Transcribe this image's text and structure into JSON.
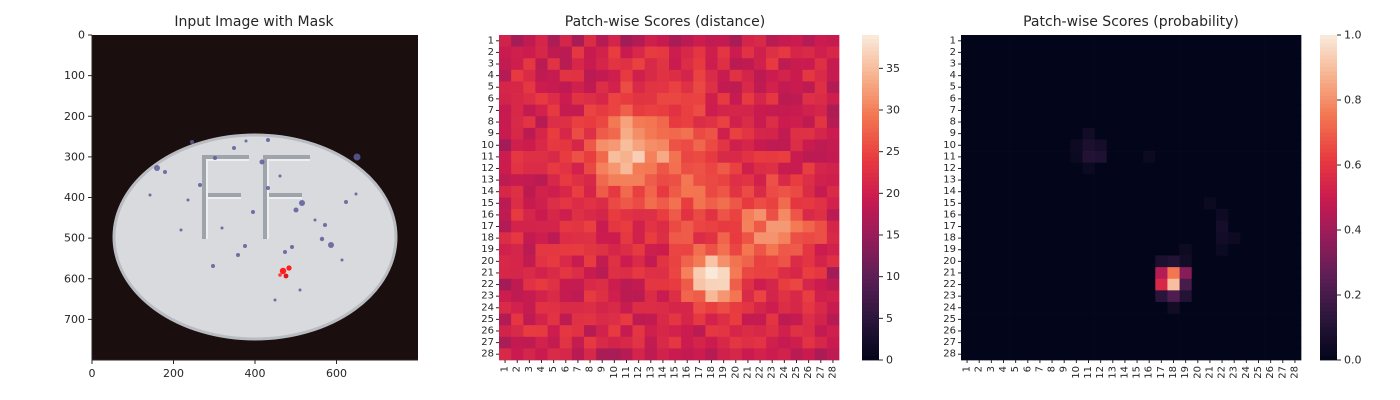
{
  "chart_data": [
    {
      "type": "image",
      "title": "Input Image with Mask",
      "xticks": [
        "0",
        "200",
        "400",
        "600"
      ],
      "yticks": [
        "0",
        "100",
        "200",
        "300",
        "400",
        "500",
        "600",
        "700"
      ],
      "xlim": [
        0,
        800
      ],
      "ylim": [
        800,
        0
      ],
      "colors": {
        "background": "#1a0f0e",
        "pill": "#d8dadd",
        "speckle": "#5c5a9a",
        "mask": "#ff1e1e"
      }
    },
    {
      "type": "heatmap",
      "title": "Patch-wise Scores (distance)",
      "rows": 28,
      "cols": 28,
      "xticks": [
        "1",
        "2",
        "3",
        "4",
        "5",
        "6",
        "7",
        "8",
        "9",
        "10",
        "11",
        "12",
        "13",
        "14",
        "15",
        "16",
        "17",
        "18",
        "19",
        "20",
        "21",
        "22",
        "23",
        "24",
        "25",
        "26",
        "27",
        "28"
      ],
      "yticks": [
        "1",
        "2",
        "3",
        "4",
        "5",
        "6",
        "7",
        "8",
        "9",
        "10",
        "11",
        "12",
        "13",
        "14",
        "15",
        "16",
        "17",
        "18",
        "19",
        "20",
        "21",
        "22",
        "23",
        "24",
        "25",
        "26",
        "27",
        "28"
      ],
      "colorbar": {
        "min": 0,
        "max": 39,
        "ticks": [
          "0",
          "5",
          "10",
          "15",
          "20",
          "25",
          "30",
          "35"
        ]
      },
      "baseline": 21,
      "blobs": [
        {
          "row": 10.5,
          "col": 11,
          "sigma": 2.2,
          "amp": 12
        },
        {
          "row": 21.5,
          "col": 18,
          "sigma": 1.6,
          "amp": 16
        },
        {
          "row": 17.5,
          "col": 23,
          "sigma": 2.3,
          "amp": 9
        },
        {
          "row": 14,
          "col": 16,
          "sigma": 3.5,
          "amp": 5
        },
        {
          "row": 8,
          "col": 14,
          "sigma": 2.5,
          "amp": 4
        }
      ],
      "colormap": "rocket"
    },
    {
      "type": "heatmap",
      "title": "Patch-wise Scores (probability)",
      "rows": 28,
      "cols": 28,
      "xticks": [
        "1",
        "2",
        "3",
        "4",
        "5",
        "6",
        "7",
        "8",
        "9",
        "10",
        "11",
        "12",
        "13",
        "14",
        "15",
        "16",
        "17",
        "18",
        "19",
        "20",
        "21",
        "22",
        "23",
        "24",
        "25",
        "26",
        "27",
        "28"
      ],
      "yticks": [
        "1",
        "2",
        "3",
        "4",
        "5",
        "6",
        "7",
        "8",
        "9",
        "10",
        "11",
        "12",
        "13",
        "14",
        "15",
        "16",
        "17",
        "18",
        "19",
        "20",
        "21",
        "22",
        "23",
        "24",
        "25",
        "26",
        "27",
        "28"
      ],
      "colorbar": {
        "min": 0.0,
        "max": 1.0,
        "ticks": [
          "0.0",
          "0.2",
          "0.4",
          "0.6",
          "0.8",
          "1.0"
        ]
      },
      "cells": [
        {
          "row": 21,
          "col": 17,
          "value": 0.45
        },
        {
          "row": 21,
          "col": 18,
          "value": 0.75
        },
        {
          "row": 21,
          "col": 19,
          "value": 0.35
        },
        {
          "row": 22,
          "col": 17,
          "value": 0.55
        },
        {
          "row": 22,
          "col": 18,
          "value": 0.9
        },
        {
          "row": 22,
          "col": 19,
          "value": 0.2
        },
        {
          "row": 20,
          "col": 17,
          "value": 0.08
        },
        {
          "row": 20,
          "col": 18,
          "value": 0.1
        },
        {
          "row": 23,
          "col": 17,
          "value": 0.12
        },
        {
          "row": 23,
          "col": 18,
          "value": 0.22
        },
        {
          "row": 23,
          "col": 19,
          "value": 0.1
        },
        {
          "row": 24,
          "col": 18,
          "value": 0.05
        },
        {
          "row": 19,
          "col": 19,
          "value": 0.04
        },
        {
          "row": 20,
          "col": 19,
          "value": 0.05
        },
        {
          "row": 10,
          "col": 11,
          "value": 0.08
        },
        {
          "row": 10,
          "col": 12,
          "value": 0.06
        },
        {
          "row": 11,
          "col": 11,
          "value": 0.1
        },
        {
          "row": 11,
          "col": 12,
          "value": 0.09
        },
        {
          "row": 9,
          "col": 11,
          "value": 0.05
        },
        {
          "row": 10,
          "col": 10,
          "value": 0.04
        },
        {
          "row": 11,
          "col": 10,
          "value": 0.03
        },
        {
          "row": 12,
          "col": 11,
          "value": 0.03
        },
        {
          "row": 17,
          "col": 22,
          "value": 0.06
        },
        {
          "row": 18,
          "col": 22,
          "value": 0.05
        },
        {
          "row": 18,
          "col": 23,
          "value": 0.04
        },
        {
          "row": 16,
          "col": 22,
          "value": 0.04
        },
        {
          "row": 19,
          "col": 22,
          "value": 0.03
        },
        {
          "row": 11,
          "col": 16,
          "value": 0.03
        },
        {
          "row": 15,
          "col": 21,
          "value": 0.03
        }
      ],
      "colormap": "rocket"
    }
  ]
}
